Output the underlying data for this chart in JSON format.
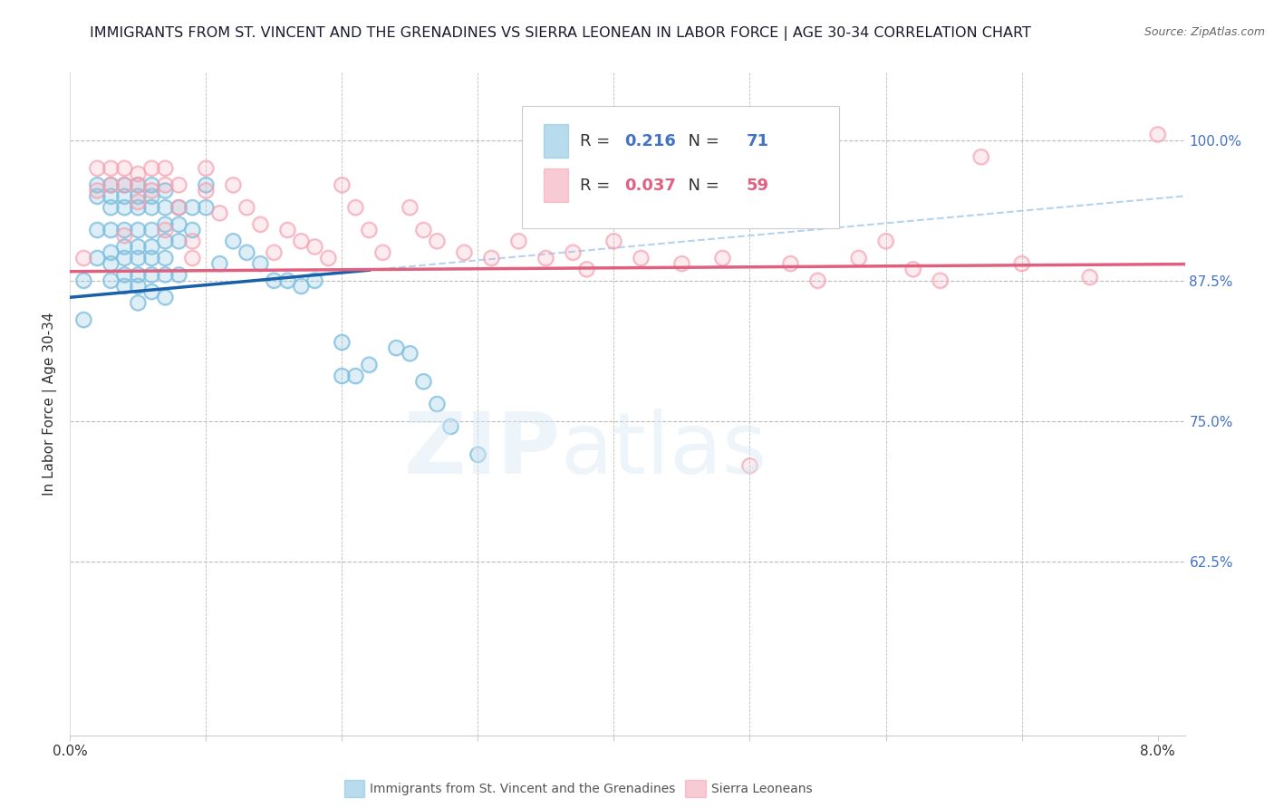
{
  "title": "IMMIGRANTS FROM ST. VINCENT AND THE GRENADINES VS SIERRA LEONEAN IN LABOR FORCE | AGE 30-34 CORRELATION CHART",
  "source": "Source: ZipAtlas.com",
  "ylabel": "In Labor Force | Age 30-34",
  "ytick_labels": [
    "100.0%",
    "87.5%",
    "75.0%",
    "62.5%"
  ],
  "ytick_values": [
    1.0,
    0.875,
    0.75,
    0.625
  ],
  "xlim": [
    0.0,
    0.082
  ],
  "ylim": [
    0.47,
    1.06
  ],
  "blue_R": 0.216,
  "blue_N": 71,
  "pink_R": 0.037,
  "pink_N": 59,
  "blue_color": "#7fbfdf",
  "pink_color": "#f4a0b0",
  "blue_line_color": "#1a5faa",
  "pink_line_color": "#e06080",
  "dashed_line_color": "#a8ccee",
  "legend_label_blue": "Immigrants from St. Vincent and the Grenadines",
  "legend_label_pink": "Sierra Leoneans",
  "R_N_color_blue": "#4472c4",
  "R_N_color_pink": "#e06080",
  "blue_x": [
    0.001,
    0.001,
    0.002,
    0.002,
    0.002,
    0.002,
    0.003,
    0.003,
    0.003,
    0.003,
    0.003,
    0.003,
    0.003,
    0.004,
    0.004,
    0.004,
    0.004,
    0.004,
    0.004,
    0.004,
    0.004,
    0.005,
    0.005,
    0.005,
    0.005,
    0.005,
    0.005,
    0.005,
    0.005,
    0.005,
    0.006,
    0.006,
    0.006,
    0.006,
    0.006,
    0.006,
    0.006,
    0.006,
    0.007,
    0.007,
    0.007,
    0.007,
    0.007,
    0.007,
    0.007,
    0.008,
    0.008,
    0.008,
    0.008,
    0.009,
    0.009,
    0.01,
    0.01,
    0.011,
    0.012,
    0.013,
    0.014,
    0.015,
    0.016,
    0.017,
    0.018,
    0.02,
    0.02,
    0.021,
    0.022,
    0.024,
    0.025,
    0.026,
    0.027,
    0.028,
    0.03
  ],
  "blue_y": [
    0.875,
    0.84,
    0.96,
    0.95,
    0.92,
    0.895,
    0.96,
    0.95,
    0.94,
    0.92,
    0.9,
    0.89,
    0.875,
    0.96,
    0.95,
    0.94,
    0.92,
    0.905,
    0.895,
    0.88,
    0.87,
    0.96,
    0.95,
    0.94,
    0.92,
    0.905,
    0.895,
    0.88,
    0.87,
    0.855,
    0.96,
    0.95,
    0.94,
    0.92,
    0.905,
    0.895,
    0.88,
    0.865,
    0.955,
    0.94,
    0.925,
    0.91,
    0.895,
    0.88,
    0.86,
    0.94,
    0.925,
    0.91,
    0.88,
    0.94,
    0.92,
    0.96,
    0.94,
    0.89,
    0.91,
    0.9,
    0.89,
    0.875,
    0.875,
    0.87,
    0.875,
    0.82,
    0.79,
    0.79,
    0.8,
    0.815,
    0.81,
    0.785,
    0.765,
    0.745,
    0.72
  ],
  "pink_x": [
    0.001,
    0.002,
    0.002,
    0.003,
    0.003,
    0.004,
    0.004,
    0.004,
    0.005,
    0.005,
    0.005,
    0.006,
    0.006,
    0.007,
    0.007,
    0.007,
    0.008,
    0.008,
    0.009,
    0.009,
    0.01,
    0.01,
    0.011,
    0.012,
    0.013,
    0.014,
    0.015,
    0.016,
    0.017,
    0.018,
    0.019,
    0.02,
    0.021,
    0.022,
    0.023,
    0.025,
    0.026,
    0.027,
    0.029,
    0.031,
    0.033,
    0.035,
    0.037,
    0.038,
    0.04,
    0.042,
    0.045,
    0.048,
    0.05,
    0.053,
    0.055,
    0.058,
    0.06,
    0.062,
    0.064,
    0.067,
    0.07,
    0.075,
    0.08
  ],
  "pink_y": [
    0.895,
    0.975,
    0.955,
    0.975,
    0.96,
    0.975,
    0.96,
    0.915,
    0.97,
    0.96,
    0.945,
    0.975,
    0.955,
    0.975,
    0.96,
    0.92,
    0.96,
    0.94,
    0.91,
    0.895,
    0.975,
    0.955,
    0.935,
    0.96,
    0.94,
    0.925,
    0.9,
    0.92,
    0.91,
    0.905,
    0.895,
    0.96,
    0.94,
    0.92,
    0.9,
    0.94,
    0.92,
    0.91,
    0.9,
    0.895,
    0.91,
    0.895,
    0.9,
    0.885,
    0.91,
    0.895,
    0.89,
    0.895,
    0.71,
    0.89,
    0.875,
    0.895,
    0.91,
    0.885,
    0.875,
    0.985,
    0.89,
    0.878,
    1.005
  ]
}
